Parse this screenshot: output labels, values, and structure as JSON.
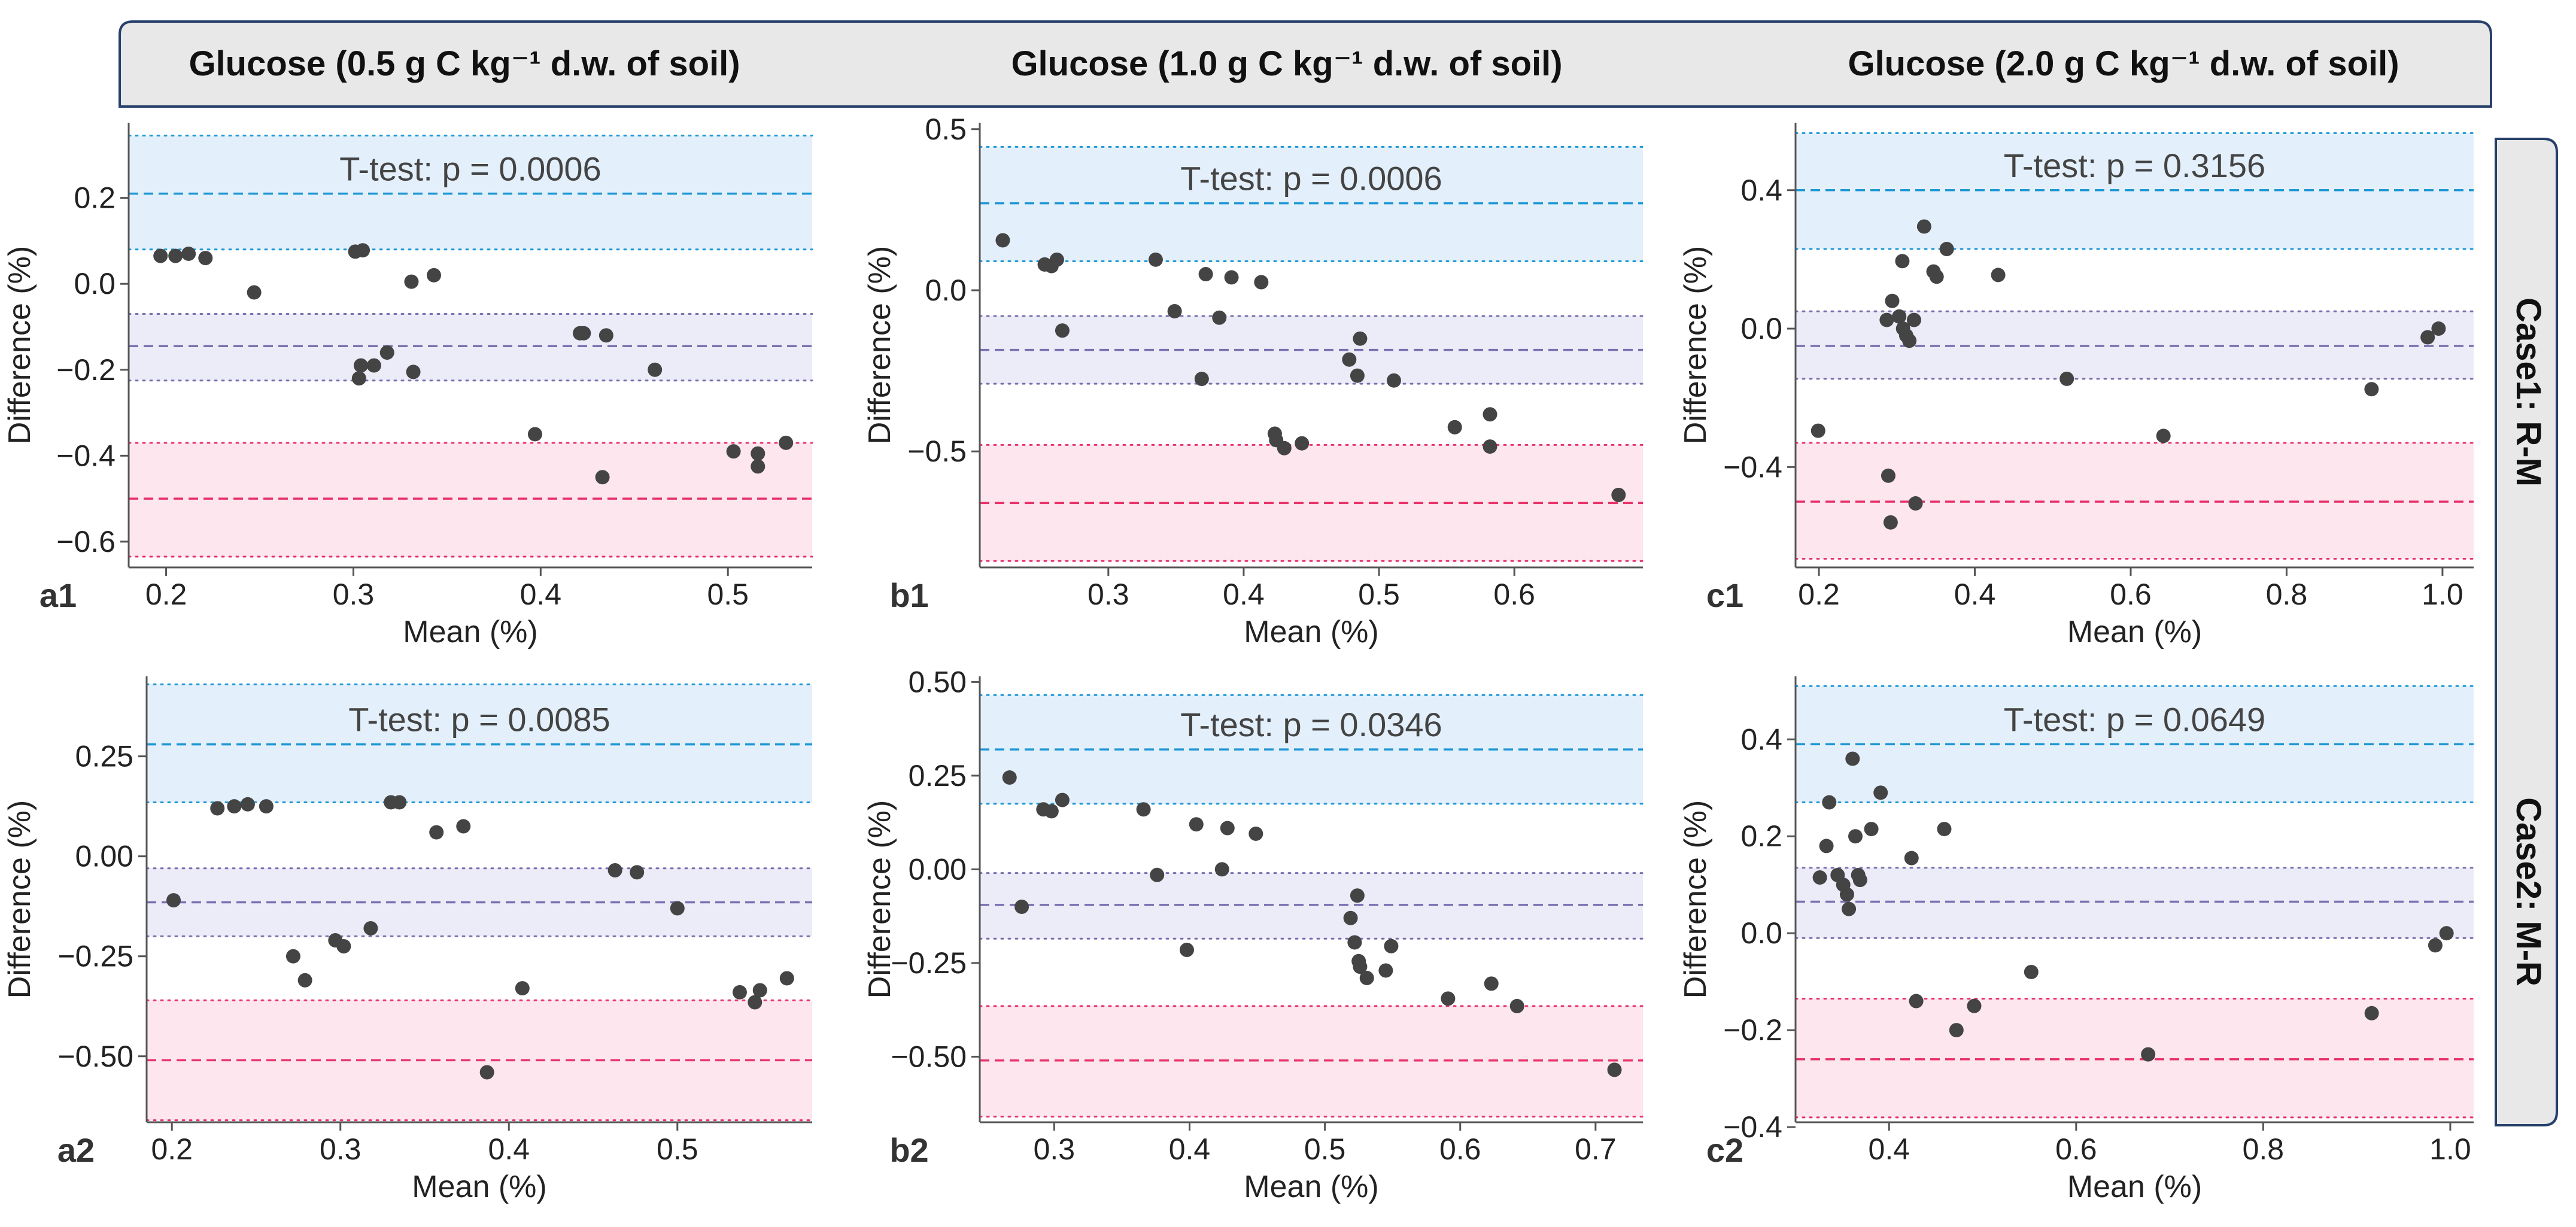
{
  "column_headers": [
    "Glucose (0.5 g C kg⁻¹ d.w. of soil)",
    "Glucose (1.0 g C kg⁻¹ d.w. of soil)",
    "Glucose (2.0 g C kg⁻¹ d.w. of soil)"
  ],
  "row_headers": [
    "Case1: R-M",
    "Case2: M-R"
  ],
  "colors": {
    "upper_band": "#e3f0fb",
    "upper_line": "#1f97d4",
    "mean_band": "#ececf8",
    "mean_line": "#7a6fb0",
    "lower_band": "#fde6ee",
    "lower_line": "#e8336b",
    "point": "#444444",
    "header_bg": "#e8e8e8",
    "header_border": "#27406b"
  },
  "chart_data": [
    {
      "panel": "a1",
      "type": "scatter",
      "title": "T-test: p = 0.0006",
      "xlabel": "Mean (%)",
      "ylabel": "Difference (%)",
      "xlim": [
        0.18,
        0.545
      ],
      "ylim": [
        -0.66,
        0.375
      ],
      "xticks": [
        0.2,
        0.3,
        0.4,
        0.5
      ],
      "xtick_labels": [
        "0.2",
        "0.3",
        "0.4",
        "0.5"
      ],
      "yticks": [
        -0.6,
        -0.4,
        -0.2,
        0.0,
        0.2
      ],
      "ytick_labels": [
        "−0.6",
        "−0.4",
        "−0.2",
        "0.0",
        "0.2"
      ],
      "bias": -0.145,
      "bias_ci": [
        -0.225,
        -0.07
      ],
      "upper_loa": 0.21,
      "upper_loa_ci": [
        0.08,
        0.345
      ],
      "lower_loa": -0.5,
      "lower_loa_ci": [
        -0.635,
        -0.37
      ],
      "points": [
        [
          0.197,
          0.065
        ],
        [
          0.205,
          0.065
        ],
        [
          0.212,
          0.07
        ],
        [
          0.221,
          0.06
        ],
        [
          0.247,
          -0.02
        ],
        [
          0.301,
          0.075
        ],
        [
          0.305,
          0.078
        ],
        [
          0.303,
          -0.22
        ],
        [
          0.304,
          -0.19
        ],
        [
          0.311,
          -0.19
        ],
        [
          0.318,
          -0.16
        ],
        [
          0.331,
          0.005
        ],
        [
          0.332,
          -0.205
        ],
        [
          0.343,
          0.02
        ],
        [
          0.397,
          -0.35
        ],
        [
          0.421,
          -0.115
        ],
        [
          0.423,
          -0.115
        ],
        [
          0.433,
          -0.45
        ],
        [
          0.435,
          -0.12
        ],
        [
          0.461,
          -0.2
        ],
        [
          0.503,
          -0.39
        ],
        [
          0.516,
          -0.395
        ],
        [
          0.516,
          -0.425
        ],
        [
          0.531,
          -0.37
        ]
      ]
    },
    {
      "panel": "b1",
      "type": "scatter",
      "title": "T-test: p = 0.0006",
      "xlabel": "Mean (%)",
      "ylabel": "Difference (%)",
      "xlim": [
        0.205,
        0.695
      ],
      "ylim": [
        -0.86,
        0.52
      ],
      "xticks": [
        0.3,
        0.4,
        0.5,
        0.6
      ],
      "xtick_labels": [
        "0.3",
        "0.4",
        "0.5",
        "0.6"
      ],
      "yticks": [
        -0.5,
        0.0,
        0.5
      ],
      "ytick_labels": [
        "−0.5",
        "0.0",
        "0.5"
      ],
      "bias": -0.185,
      "bias_ci": [
        -0.29,
        -0.08
      ],
      "upper_loa": 0.27,
      "upper_loa_ci": [
        0.09,
        0.445
      ],
      "lower_loa": -0.66,
      "lower_loa_ci": [
        -0.84,
        -0.48
      ],
      "points": [
        [
          0.222,
          0.155
        ],
        [
          0.253,
          0.08
        ],
        [
          0.258,
          0.075
        ],
        [
          0.262,
          0.095
        ],
        [
          0.266,
          -0.125
        ],
        [
          0.335,
          0.095
        ],
        [
          0.349,
          -0.065
        ],
        [
          0.369,
          -0.275
        ],
        [
          0.372,
          0.05
        ],
        [
          0.382,
          -0.085
        ],
        [
          0.391,
          0.04
        ],
        [
          0.413,
          0.025
        ],
        [
          0.423,
          -0.445
        ],
        [
          0.424,
          -0.465
        ],
        [
          0.43,
          -0.49
        ],
        [
          0.443,
          -0.475
        ],
        [
          0.478,
          -0.215
        ],
        [
          0.484,
          -0.265
        ],
        [
          0.486,
          -0.15
        ],
        [
          0.511,
          -0.28
        ],
        [
          0.556,
          -0.425
        ],
        [
          0.582,
          -0.385
        ],
        [
          0.582,
          -0.485
        ],
        [
          0.677,
          -0.635
        ]
      ]
    },
    {
      "panel": "c1",
      "type": "scatter",
      "title": "T-test: p = 0.3156",
      "xlabel": "Mean (%)",
      "ylabel": "Difference (%)",
      "xlim": [
        0.17,
        1.04
      ],
      "ylim": [
        -0.69,
        0.595
      ],
      "xticks": [
        0.2,
        0.4,
        0.6,
        0.8,
        1.0
      ],
      "xtick_labels": [
        "0.2",
        "0.4",
        "0.6",
        "0.8",
        "1.0"
      ],
      "yticks": [
        -0.4,
        0.0,
        0.4
      ],
      "ytick_labels": [
        "−0.4",
        "0.0",
        "0.4"
      ],
      "bias": -0.05,
      "bias_ci": [
        -0.145,
        0.05
      ],
      "upper_loa": 0.4,
      "upper_loa_ci": [
        0.23,
        0.565
      ],
      "lower_loa": -0.5,
      "lower_loa_ci": [
        -0.665,
        -0.33
      ],
      "points": [
        [
          0.199,
          -0.295
        ],
        [
          0.287,
          0.025
        ],
        [
          0.289,
          -0.425
        ],
        [
          0.292,
          -0.56
        ],
        [
          0.294,
          0.08
        ],
        [
          0.303,
          0.035
        ],
        [
          0.307,
          0.195
        ],
        [
          0.308,
          0.0
        ],
        [
          0.312,
          -0.02
        ],
        [
          0.316,
          -0.035
        ],
        [
          0.322,
          0.025
        ],
        [
          0.324,
          -0.505
        ],
        [
          0.335,
          0.295
        ],
        [
          0.347,
          0.165
        ],
        [
          0.351,
          0.15
        ],
        [
          0.364,
          0.23
        ],
        [
          0.43,
          0.155
        ],
        [
          0.518,
          -0.145
        ],
        [
          0.642,
          -0.31
        ],
        [
          0.909,
          -0.175
        ],
        [
          0.981,
          -0.025
        ],
        [
          0.995,
          0.0
        ]
      ]
    },
    {
      "panel": "a2",
      "type": "scatter",
      "title": "T-test: p = 0.0085",
      "xlabel": "Mean (%)",
      "ylabel": "Difference (%)",
      "xlim": [
        0.185,
        0.58
      ],
      "ylim": [
        -0.665,
        0.45
      ],
      "xticks": [
        0.2,
        0.3,
        0.4,
        0.5
      ],
      "xtick_labels": [
        "0.2",
        "0.3",
        "0.4",
        "0.5"
      ],
      "yticks": [
        -0.5,
        -0.25,
        0.0,
        0.25
      ],
      "ytick_labels": [
        "−0.50",
        "−0.25",
        "0.00",
        "0.25"
      ],
      "bias": -0.115,
      "bias_ci": [
        -0.2,
        -0.03
      ],
      "upper_loa": 0.28,
      "upper_loa_ci": [
        0.135,
        0.43
      ],
      "lower_loa": -0.51,
      "lower_loa_ci": [
        -0.66,
        -0.36
      ],
      "points": [
        [
          0.201,
          -0.11
        ],
        [
          0.227,
          0.12
        ],
        [
          0.237,
          0.125
        ],
        [
          0.245,
          0.13
        ],
        [
          0.256,
          0.125
        ],
        [
          0.272,
          -0.25
        ],
        [
          0.279,
          -0.31
        ],
        [
          0.297,
          -0.21
        ],
        [
          0.302,
          -0.225
        ],
        [
          0.318,
          -0.18
        ],
        [
          0.33,
          0.135
        ],
        [
          0.335,
          0.135
        ],
        [
          0.357,
          0.06
        ],
        [
          0.373,
          0.075
        ],
        [
          0.387,
          -0.54
        ],
        [
          0.408,
          -0.33
        ],
        [
          0.463,
          -0.035
        ],
        [
          0.476,
          -0.04
        ],
        [
          0.5,
          -0.13
        ],
        [
          0.537,
          -0.34
        ],
        [
          0.546,
          -0.365
        ],
        [
          0.549,
          -0.335
        ],
        [
          0.565,
          -0.305
        ]
      ]
    },
    {
      "panel": "b2",
      "type": "scatter",
      "title": "T-test: p = 0.0346",
      "xlabel": "Mean (%)",
      "ylabel": "Difference (%)",
      "xlim": [
        0.245,
        0.735
      ],
      "ylim": [
        -0.675,
        0.515
      ],
      "xticks": [
        0.3,
        0.4,
        0.5,
        0.6,
        0.7
      ],
      "xtick_labels": [
        "0.3",
        "0.4",
        "0.5",
        "0.6",
        "0.7"
      ],
      "yticks": [
        -0.5,
        -0.25,
        0.0,
        0.25,
        0.5
      ],
      "ytick_labels": [
        "−0.50",
        "−0.25",
        "0.00",
        "0.25",
        "0.50"
      ],
      "bias": -0.095,
      "bias_ci": [
        -0.185,
        -0.01
      ],
      "upper_loa": 0.32,
      "upper_loa_ci": [
        0.175,
        0.465
      ],
      "lower_loa": -0.51,
      "lower_loa_ci": [
        -0.66,
        -0.365
      ],
      "points": [
        [
          0.267,
          0.245
        ],
        [
          0.276,
          -0.1
        ],
        [
          0.292,
          0.16
        ],
        [
          0.298,
          0.155
        ],
        [
          0.306,
          0.185
        ],
        [
          0.366,
          0.16
        ],
        [
          0.376,
          -0.015
        ],
        [
          0.398,
          -0.215
        ],
        [
          0.405,
          0.12
        ],
        [
          0.424,
          0.0
        ],
        [
          0.428,
          0.11
        ],
        [
          0.449,
          0.095
        ],
        [
          0.519,
          -0.13
        ],
        [
          0.522,
          -0.195
        ],
        [
          0.524,
          -0.07
        ],
        [
          0.525,
          -0.245
        ],
        [
          0.526,
          -0.26
        ],
        [
          0.531,
          -0.29
        ],
        [
          0.545,
          -0.27
        ],
        [
          0.549,
          -0.205
        ],
        [
          0.591,
          -0.345
        ],
        [
          0.623,
          -0.305
        ],
        [
          0.642,
          -0.365
        ],
        [
          0.714,
          -0.535
        ]
      ]
    },
    {
      "panel": "c2",
      "type": "scatter",
      "title": "T-test: p = 0.0649",
      "xlabel": "Mean (%)",
      "ylabel": "Difference (%)",
      "xlim": [
        0.3,
        1.025
      ],
      "ylim": [
        -0.39,
        0.53
      ],
      "xticks": [
        0.4,
        0.6,
        0.8,
        1.0
      ],
      "xtick_labels": [
        "0.4",
        "0.6",
        "0.8",
        "1.0"
      ],
      "yticks": [
        -0.4,
        -0.2,
        0.0,
        0.2,
        0.4
      ],
      "ytick_labels": [
        "−0.4",
        "−0.2",
        "0.0",
        "0.2",
        "0.4"
      ],
      "bias": 0.065,
      "bias_ci": [
        -0.01,
        0.135
      ],
      "upper_loa": 0.39,
      "upper_loa_ci": [
        0.27,
        0.51
      ],
      "lower_loa": -0.26,
      "lower_loa_ci": [
        -0.38,
        -0.135
      ],
      "points": [
        [
          0.326,
          0.115
        ],
        [
          0.333,
          0.18
        ],
        [
          0.336,
          0.27
        ],
        [
          0.345,
          0.12
        ],
        [
          0.351,
          0.1
        ],
        [
          0.355,
          0.08
        ],
        [
          0.357,
          0.05
        ],
        [
          0.361,
          0.36
        ],
        [
          0.364,
          0.2
        ],
        [
          0.367,
          0.12
        ],
        [
          0.369,
          0.11
        ],
        [
          0.381,
          0.215
        ],
        [
          0.391,
          0.29
        ],
        [
          0.424,
          0.155
        ],
        [
          0.429,
          -0.14
        ],
        [
          0.459,
          0.215
        ],
        [
          0.472,
          -0.2
        ],
        [
          0.491,
          -0.15
        ],
        [
          0.552,
          -0.08
        ],
        [
          0.677,
          -0.25
        ],
        [
          0.916,
          -0.165
        ],
        [
          0.984,
          -0.025
        ],
        [
          0.996,
          0.0
        ]
      ]
    }
  ]
}
